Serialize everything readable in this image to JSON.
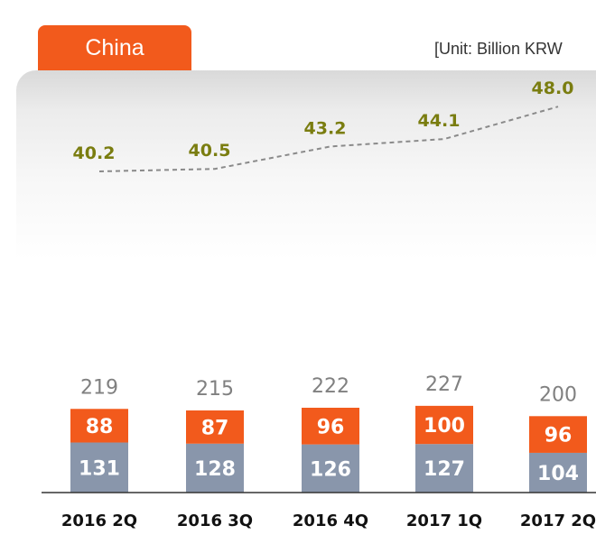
{
  "header": {
    "tab_label": "China",
    "unit_text": "[Unit: Billion KRW"
  },
  "colors": {
    "accent": "#f25a1c",
    "base_bar": "#8996ab",
    "line_label": "#7a7d10",
    "line": "#8a8a8a"
  },
  "chart_data": {
    "type": "bar",
    "stacked": true,
    "categories": [
      "2016 2Q",
      "2016 3Q",
      "2016 4Q",
      "2017 1Q",
      "2017 2Q"
    ],
    "series": [
      {
        "values": [
          131,
          128,
          126,
          127,
          104
        ]
      },
      {
        "values": [
          88,
          87,
          96,
          100,
          96
        ]
      }
    ],
    "totals": [
      219,
      215,
      222,
      227,
      200
    ],
    "line_series": {
      "style": "dashed",
      "values": [
        40.2,
        40.5,
        43.2,
        44.1,
        48.0
      ]
    },
    "xlabel": "",
    "ylabel": "",
    "grid": false,
    "legend": "none"
  }
}
